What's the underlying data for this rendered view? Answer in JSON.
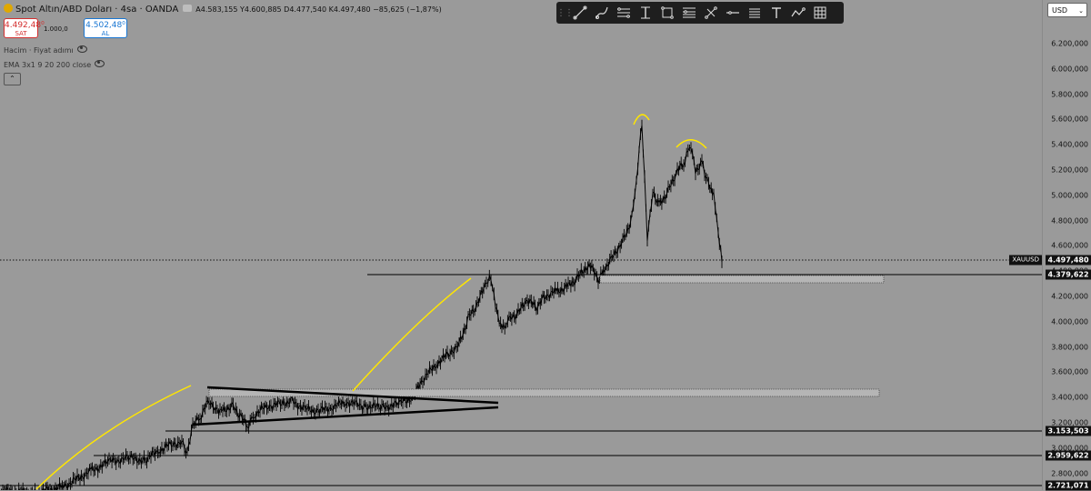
{
  "header": {
    "title": "Spot Altın/ABD Doları · 4sa · OANDA",
    "ohlc": "A4.583,155 Y4.600,885 D4.477,540 K4.497,480 −85,625 (−1,87%)",
    "sell_price": "4.492,48⁰",
    "sell_label": "SAT",
    "lot": "1.000,0",
    "buy_price": "4.502,48⁰",
    "buy_label": "AL",
    "indicators": [
      "Hacim · Fiyat adımı",
      "EMA 3x1 9 20 200 close"
    ]
  },
  "toolbar": {
    "tools": [
      "grip-icon",
      "trend-line-icon",
      "brush-icon",
      "parallel-channel-icon",
      "date-range-icon",
      "rectangle-icon",
      "fib-retracement-icon",
      "pitchfork-icon",
      "horizontal-line-icon",
      "text-list-icon",
      "text-icon",
      "path-icon",
      "grid-icon"
    ]
  },
  "price_scale": {
    "currency": "USD",
    "ticks": [
      "6.200,000",
      "6.000,000",
      "5.800,000",
      "5.600,000",
      "5.400,000",
      "5.200,000",
      "5.000,000",
      "4.800,000",
      "4.600,000",
      "4.400,000",
      "4.200,000",
      "4.000,000",
      "3.800,000",
      "3.600,000",
      "3.400,000",
      "3.200,000",
      "3.000,000",
      "2.800,000"
    ],
    "symbol_tag": "XAUUSD",
    "current_price": "4.497,480",
    "level_tags": [
      "4.379,622",
      "3.153,503",
      "2.959,622",
      "2.721,071"
    ]
  },
  "colors": {
    "background": "#9a9a9a",
    "annotation": "#ffe600",
    "candle": "#000000",
    "sell": "#d32f2f",
    "buy": "#1976d2"
  }
}
